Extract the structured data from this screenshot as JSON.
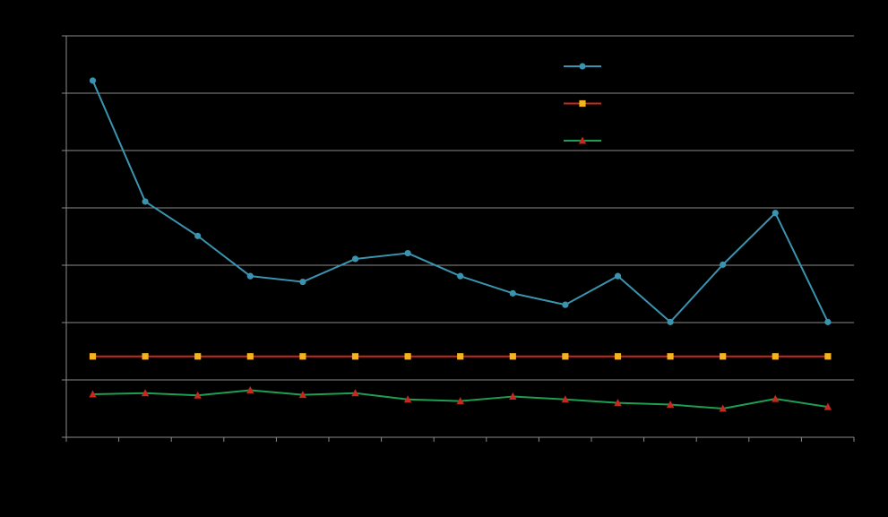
{
  "chart_data": {
    "type": "line",
    "title": "",
    "xlabel": "",
    "ylabel": "",
    "x": [
      1,
      2,
      3,
      4,
      5,
      6,
      7,
      8,
      9,
      10,
      11,
      12,
      13,
      14,
      15
    ],
    "ylim": [
      0,
      7
    ],
    "grid": true,
    "legend_position": "top-right",
    "series": [
      {
        "marker": "circle",
        "color": "#3a94b0",
        "marker_color": "#3a94b0",
        "values": [
          6.22,
          4.11,
          3.51,
          2.81,
          2.71,
          3.11,
          3.21,
          2.81,
          2.51,
          2.31,
          2.81,
          2.01,
          3.01,
          3.91,
          2.01
        ]
      },
      {
        "marker": "square",
        "color": "#c8281e",
        "marker_color": "#f5b41e",
        "values": [
          1.41,
          1.41,
          1.41,
          1.41,
          1.41,
          1.41,
          1.41,
          1.41,
          1.41,
          1.41,
          1.41,
          1.41,
          1.41,
          1.41,
          1.41
        ]
      },
      {
        "marker": "triangle",
        "color": "#1e9e50",
        "marker_color": "#c8281e",
        "values": [
          0.75,
          0.77,
          0.73,
          0.82,
          0.74,
          0.77,
          0.66,
          0.63,
          0.71,
          0.66,
          0.6,
          0.57,
          0.5,
          0.67,
          0.53
        ]
      }
    ]
  }
}
